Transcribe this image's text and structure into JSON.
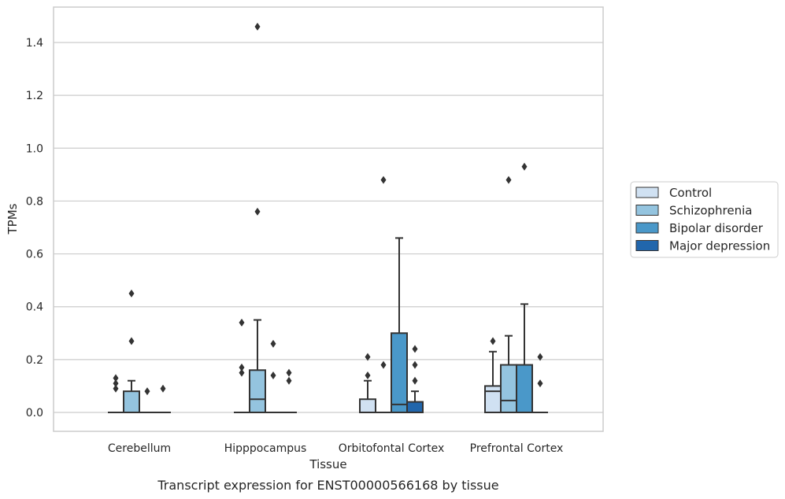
{
  "caption": "Transcript expression for ENST00000566168 by tissue",
  "chart_data": {
    "type": "box",
    "xlabel": "Tissue",
    "ylabel": "TPMs",
    "ylim": [
      -0.07,
      1.54
    ],
    "yticks": [
      "0.0",
      "0.2",
      "0.4",
      "0.6",
      "0.8",
      "1.0",
      "1.2",
      "1.4"
    ],
    "grid": "horizontal",
    "legend_placement": "right",
    "categories": [
      "Cerebellum",
      "Hipppocampus",
      "Orbitofontal Cortex",
      "Prefrontal Cortex"
    ],
    "series": [
      {
        "name": "Control",
        "color": "#d0e1f2",
        "boxes": [
          {
            "q1": 0,
            "median": 0,
            "q3": 0,
            "whislo": 0,
            "whishi": 0,
            "fliers": [
              0.09,
              0.11,
              0.13
            ]
          },
          {
            "q1": 0,
            "median": 0,
            "q3": 0,
            "whislo": 0,
            "whishi": 0,
            "fliers": [
              0.15,
              0.17,
              0.34
            ]
          },
          {
            "q1": 0,
            "median": 0,
            "q3": 0.05,
            "whislo": 0,
            "whishi": 0.12,
            "fliers": [
              0.14,
              0.21
            ]
          },
          {
            "q1": 0,
            "median": 0.08,
            "q3": 0.1,
            "whislo": 0,
            "whishi": 0.23,
            "fliers": [
              0.27
            ]
          }
        ]
      },
      {
        "name": "Schizophrenia",
        "color": "#94c4df",
        "boxes": [
          {
            "q1": 0,
            "median": 0,
            "q3": 0.08,
            "whislo": 0,
            "whishi": 0.12,
            "fliers": [
              0.27,
              0.45
            ]
          },
          {
            "q1": 0,
            "median": 0.05,
            "q3": 0.16,
            "whislo": 0,
            "whishi": 0.35,
            "fliers": [
              0.76,
              1.46
            ]
          },
          {
            "q1": 0,
            "median": 0,
            "q3": 0,
            "whislo": 0,
            "whishi": 0,
            "fliers": [
              0.18,
              0.88
            ]
          },
          {
            "q1": 0,
            "median": 0.045,
            "q3": 0.18,
            "whislo": 0,
            "whishi": 0.29,
            "fliers": [
              0.88
            ]
          }
        ]
      },
      {
        "name": "Bipolar disorder",
        "color": "#4a98c9",
        "boxes": [
          {
            "q1": 0,
            "median": 0,
            "q3": 0,
            "whislo": 0,
            "whishi": 0,
            "fliers": [
              0.08
            ]
          },
          {
            "q1": 0,
            "median": 0,
            "q3": 0,
            "whislo": 0,
            "whishi": 0,
            "fliers": [
              0.14,
              0.26
            ]
          },
          {
            "q1": 0,
            "median": 0.03,
            "q3": 0.3,
            "whislo": 0,
            "whishi": 0.66,
            "fliers": []
          },
          {
            "q1": 0,
            "median": 0,
            "q3": 0.18,
            "whislo": 0,
            "whishi": 0.41,
            "fliers": [
              0.93
            ]
          }
        ]
      },
      {
        "name": "Major depression",
        "color": "#2166ac",
        "boxes": [
          {
            "q1": 0,
            "median": 0,
            "q3": 0,
            "whislo": 0,
            "whishi": 0,
            "fliers": [
              0.09
            ]
          },
          {
            "q1": 0,
            "median": 0,
            "q3": 0,
            "whislo": 0,
            "whishi": 0,
            "fliers": [
              0.12,
              0.15
            ]
          },
          {
            "q1": 0,
            "median": 0,
            "q3": 0.04,
            "whislo": 0,
            "whishi": 0.08,
            "fliers": [
              0.12,
              0.18,
              0.24
            ]
          },
          {
            "q1": 0,
            "median": 0,
            "q3": 0,
            "whislo": 0,
            "whishi": 0,
            "fliers": [
              0.11,
              0.21
            ]
          }
        ]
      }
    ]
  }
}
